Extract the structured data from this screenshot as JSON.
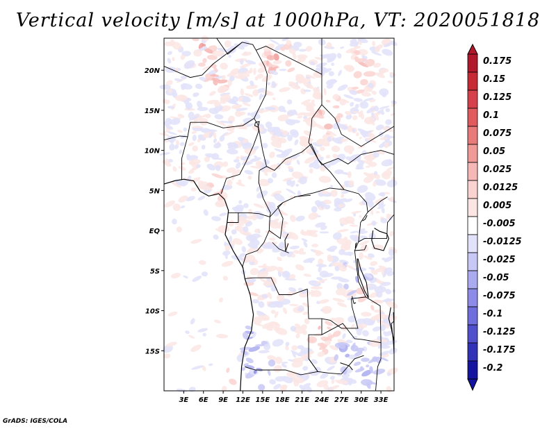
{
  "title": "Vertical velocity [m/s] at 1000hPa, VT: 2020051818",
  "credit": "GrADS: IGES/COLA",
  "map": {
    "lon_range": [
      0,
      35
    ],
    "lat_range": [
      -20,
      24
    ],
    "lat_ticks": [
      {
        "lat": 20,
        "label": "20N"
      },
      {
        "lat": 15,
        "label": "15N"
      },
      {
        "lat": 10,
        "label": "10N"
      },
      {
        "lat": 5,
        "label": "5N"
      },
      {
        "lat": 0,
        "label": "EQ"
      },
      {
        "lat": -5,
        "label": "5S"
      },
      {
        "lat": -10,
        "label": "10S"
      },
      {
        "lat": -15,
        "label": "15S"
      }
    ],
    "lon_ticks": [
      {
        "lon": 3,
        "label": "3E"
      },
      {
        "lon": 6,
        "label": "6E"
      },
      {
        "lon": 9,
        "label": "9E"
      },
      {
        "lon": 12,
        "label": "12E"
      },
      {
        "lon": 15,
        "label": "15E"
      },
      {
        "lon": 18,
        "label": "18E"
      },
      {
        "lon": 21,
        "label": "21E"
      },
      {
        "lon": 24,
        "label": "24E"
      },
      {
        "lon": 27,
        "label": "27E"
      },
      {
        "lon": 30,
        "label": "30E"
      },
      {
        "lon": 33,
        "label": "33E"
      }
    ]
  },
  "colorbar": {
    "levels": [
      {
        "label": "0.175",
        "color": "#b2182b"
      },
      {
        "label": "0.15",
        "color": "#c62a35"
      },
      {
        "label": "0.125",
        "color": "#d6404a"
      },
      {
        "label": "0.1",
        "color": "#e05a5e"
      },
      {
        "label": "0.075",
        "color": "#e87a7a"
      },
      {
        "label": "0.05",
        "color": "#f09a98"
      },
      {
        "label": "0.025",
        "color": "#f6b8b6"
      },
      {
        "label": "0.0125",
        "color": "#fad2d0"
      },
      {
        "label": "0.005",
        "color": "#fce6e4"
      },
      {
        "label": "-0.005",
        "color": "#ffffff"
      },
      {
        "label": "-0.0125",
        "color": "#e2e2fa"
      },
      {
        "label": "-0.025",
        "color": "#c8c8f6"
      },
      {
        "label": "-0.05",
        "color": "#aaaaf0"
      },
      {
        "label": "-0.075",
        "color": "#8c8ce8"
      },
      {
        "label": "-0.1",
        "color": "#6e6edc"
      },
      {
        "label": "-0.125",
        "color": "#5050cc"
      },
      {
        "label": "-0.175",
        "color": "#3232b8"
      },
      {
        "label": "-0.2",
        "color": "#1414a0"
      }
    ],
    "top_cap_color": "#b2182b",
    "bottom_cap_color": "#1414a0"
  }
}
